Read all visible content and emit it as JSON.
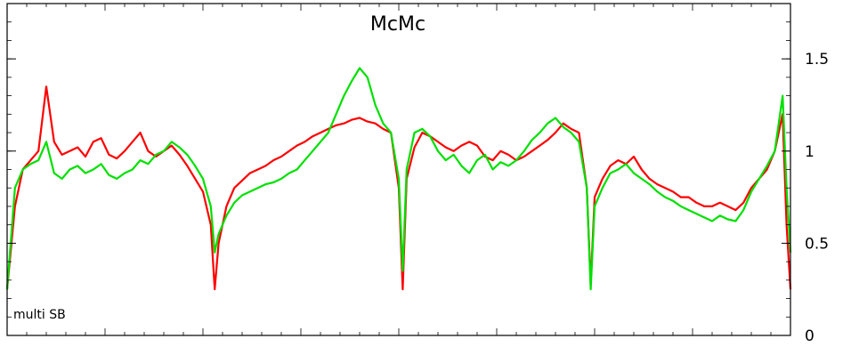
{
  "chart_data": {
    "type": "line",
    "title": "McMc",
    "annotation": "multi SB",
    "xlabel": "",
    "ylabel": "",
    "ylim": [
      0,
      1.8
    ],
    "xlim": [
      0,
      100
    ],
    "y_ticks": [
      0,
      0.5,
      1,
      1.5
    ],
    "y_tick_labels": [
      "0",
      "0.5",
      "1",
      "1.5"
    ],
    "y_axis_side": "right",
    "grid": false,
    "legend": "none",
    "series": [
      {
        "color": "#ff0000",
        "x": [
          0,
          1,
          2,
          3,
          4,
          5,
          6,
          7,
          8,
          9,
          10,
          11,
          12,
          13,
          14,
          15,
          16,
          17,
          18,
          19,
          20,
          21,
          22,
          23,
          24,
          25,
          26,
          26.5,
          27,
          28,
          29,
          30,
          31,
          32,
          33,
          34,
          35,
          36,
          37,
          38,
          39,
          40,
          41,
          42,
          43,
          44,
          45,
          46,
          47,
          48,
          49,
          50,
          50.5,
          51,
          52,
          53,
          54,
          55,
          56,
          57,
          58,
          59,
          60,
          61,
          62,
          63,
          64,
          65,
          66,
          67,
          68,
          69,
          70,
          71,
          72,
          73,
          74,
          74.5,
          75,
          76,
          77,
          78,
          79,
          80,
          81,
          82,
          83,
          84,
          85,
          86,
          87,
          88,
          89,
          90,
          91,
          92,
          93,
          94,
          95,
          96,
          97,
          98,
          99,
          99.5,
          100
        ],
        "y": [
          0.25,
          0.7,
          0.9,
          0.95,
          1.0,
          1.35,
          1.05,
          0.98,
          1.0,
          1.02,
          0.97,
          1.05,
          1.07,
          0.98,
          0.96,
          1.0,
          1.05,
          1.1,
          1.0,
          0.97,
          1.0,
          1.03,
          0.98,
          0.92,
          0.85,
          0.78,
          0.6,
          0.25,
          0.5,
          0.7,
          0.8,
          0.84,
          0.88,
          0.9,
          0.92,
          0.95,
          0.97,
          1.0,
          1.03,
          1.05,
          1.08,
          1.1,
          1.12,
          1.14,
          1.15,
          1.17,
          1.18,
          1.16,
          1.15,
          1.12,
          1.1,
          0.8,
          0.25,
          0.85,
          1.02,
          1.1,
          1.08,
          1.05,
          1.02,
          1.0,
          1.03,
          1.05,
          1.03,
          0.97,
          0.95,
          1.0,
          0.98,
          0.95,
          0.97,
          1.0,
          1.03,
          1.06,
          1.1,
          1.15,
          1.12,
          1.1,
          0.8,
          0.28,
          0.75,
          0.85,
          0.92,
          0.95,
          0.93,
          0.97,
          0.9,
          0.85,
          0.82,
          0.8,
          0.78,
          0.75,
          0.75,
          0.72,
          0.7,
          0.7,
          0.72,
          0.7,
          0.68,
          0.72,
          0.8,
          0.85,
          0.9,
          1.0,
          1.2,
          0.6,
          0.25
        ]
      },
      {
        "color": "#00e000",
        "x": [
          0,
          1,
          2,
          3,
          4,
          5,
          6,
          7,
          8,
          9,
          10,
          11,
          12,
          13,
          14,
          15,
          16,
          17,
          18,
          19,
          20,
          21,
          22,
          23,
          24,
          25,
          26,
          26.5,
          27,
          28,
          29,
          30,
          31,
          32,
          33,
          34,
          35,
          36,
          37,
          38,
          39,
          40,
          41,
          42,
          43,
          44,
          45,
          46,
          47,
          48,
          49,
          50,
          50.5,
          51,
          52,
          53,
          54,
          55,
          56,
          57,
          58,
          59,
          60,
          61,
          62,
          63,
          64,
          65,
          66,
          67,
          68,
          69,
          70,
          71,
          72,
          73,
          74,
          74.5,
          75,
          76,
          77,
          78,
          79,
          80,
          81,
          82,
          83,
          84,
          85,
          86,
          87,
          88,
          89,
          90,
          91,
          92,
          93,
          94,
          95,
          96,
          97,
          98,
          99,
          99.5,
          100
        ],
        "y": [
          0.25,
          0.8,
          0.9,
          0.93,
          0.95,
          1.05,
          0.88,
          0.85,
          0.9,
          0.92,
          0.88,
          0.9,
          0.93,
          0.87,
          0.85,
          0.88,
          0.9,
          0.95,
          0.93,
          0.98,
          1.0,
          1.05,
          1.02,
          0.98,
          0.92,
          0.85,
          0.7,
          0.45,
          0.55,
          0.65,
          0.72,
          0.76,
          0.78,
          0.8,
          0.82,
          0.83,
          0.85,
          0.88,
          0.9,
          0.95,
          1.0,
          1.05,
          1.1,
          1.2,
          1.3,
          1.38,
          1.45,
          1.4,
          1.25,
          1.15,
          1.1,
          0.85,
          0.35,
          0.9,
          1.1,
          1.12,
          1.08,
          1.0,
          0.95,
          0.98,
          0.92,
          0.88,
          0.95,
          0.98,
          0.9,
          0.94,
          0.92,
          0.95,
          1.0,
          1.06,
          1.1,
          1.15,
          1.18,
          1.13,
          1.1,
          1.05,
          0.8,
          0.25,
          0.7,
          0.8,
          0.88,
          0.9,
          0.93,
          0.88,
          0.85,
          0.82,
          0.78,
          0.75,
          0.73,
          0.7,
          0.68,
          0.66,
          0.64,
          0.62,
          0.65,
          0.63,
          0.62,
          0.68,
          0.78,
          0.85,
          0.92,
          1.0,
          1.3,
          0.8,
          0.45
        ]
      }
    ]
  }
}
